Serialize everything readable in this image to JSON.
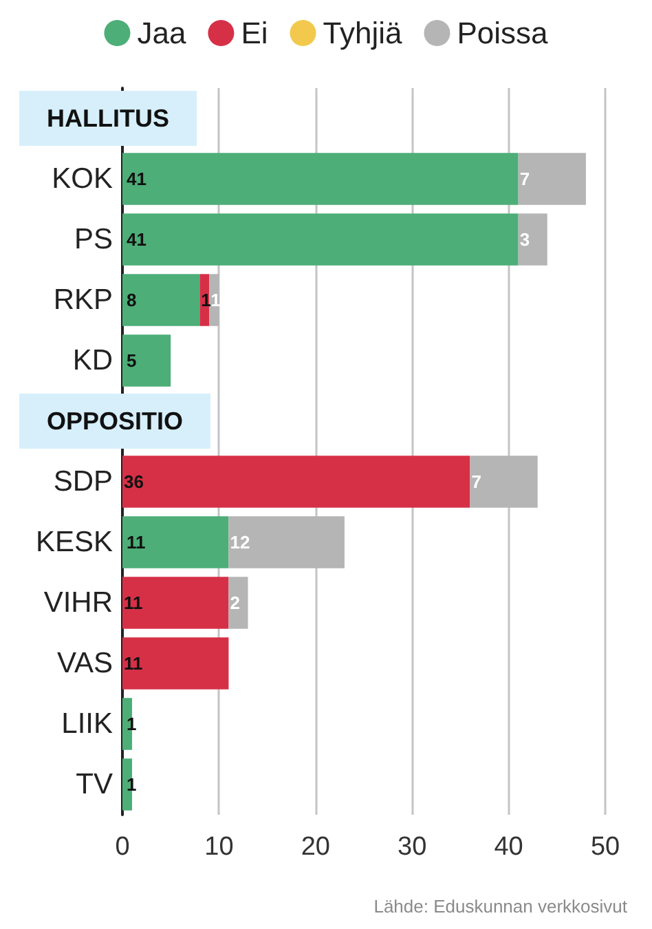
{
  "chart_data": {
    "type": "bar",
    "orientation": "horizontal",
    "stacked": true,
    "categories": [
      "HALLITUS",
      "KOK",
      "PS",
      "RKP",
      "KD",
      "OPPOSITIO",
      "SDP",
      "KESK",
      "VIHR",
      "VAS",
      "LIIK",
      "TV"
    ],
    "series": [
      {
        "name": "Jaa",
        "color": "#4dae78",
        "values": [
          null,
          41,
          41,
          8,
          5,
          null,
          null,
          11,
          null,
          null,
          1,
          1
        ]
      },
      {
        "name": "Ei",
        "color": "#d63047",
        "values": [
          null,
          null,
          null,
          1,
          null,
          null,
          36,
          null,
          11,
          11,
          null,
          null
        ]
      },
      {
        "name": "Tyhjiä",
        "color": "#f2c94c",
        "values": [
          null,
          null,
          null,
          null,
          null,
          null,
          null,
          null,
          null,
          null,
          null,
          null
        ]
      },
      {
        "name": "Poissa",
        "color": "#b5b5b5",
        "values": [
          null,
          7,
          3,
          1,
          null,
          null,
          7,
          12,
          2,
          null,
          null,
          null
        ]
      }
    ],
    "xlim": [
      0,
      50
    ],
    "xticks": [
      0,
      10,
      20,
      30,
      40,
      50
    ],
    "grid": "x",
    "legend": "top",
    "data_labels": true,
    "annotations": [
      "Lähde: Eduskunnan verkkosivut"
    ]
  }
}
